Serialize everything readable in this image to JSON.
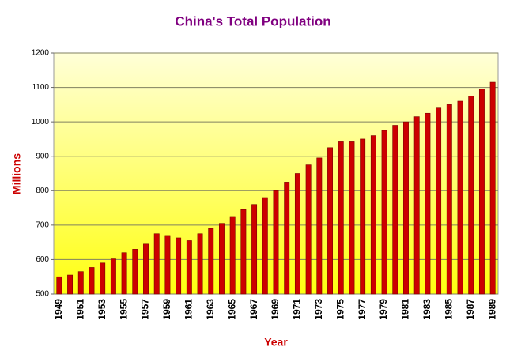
{
  "chart_data": {
    "type": "bar",
    "title": "China's Total Population",
    "x_label": "Year",
    "y_label": "Millions",
    "categories": [
      1949,
      null,
      1951,
      null,
      1953,
      null,
      1955,
      null,
      1957,
      null,
      1959,
      null,
      1961,
      null,
      1963,
      null,
      1965,
      null,
      1967,
      null,
      1969,
      null,
      1971,
      null,
      1973,
      null,
      1975,
      null,
      1977,
      null,
      1979,
      null,
      1981,
      null,
      1983,
      null,
      1985,
      null,
      1987,
      null,
      1989
    ],
    "values": [
      550,
      555,
      565,
      577,
      590,
      602,
      620,
      630,
      645,
      675,
      670,
      663,
      655,
      675,
      690,
      705,
      725,
      745,
      760,
      780,
      800,
      825,
      850,
      875,
      895,
      925,
      942,
      942,
      950,
      960,
      975,
      990,
      1000,
      1015,
      1025,
      1040,
      1050,
      1060,
      1075,
      1095,
      1115
    ],
    "color": "#cc0000",
    "ylim": [
      500,
      1200
    ],
    "yticks": [
      500,
      600,
      700,
      800,
      900,
      1000,
      1100,
      1200
    ],
    "grid": true
  }
}
